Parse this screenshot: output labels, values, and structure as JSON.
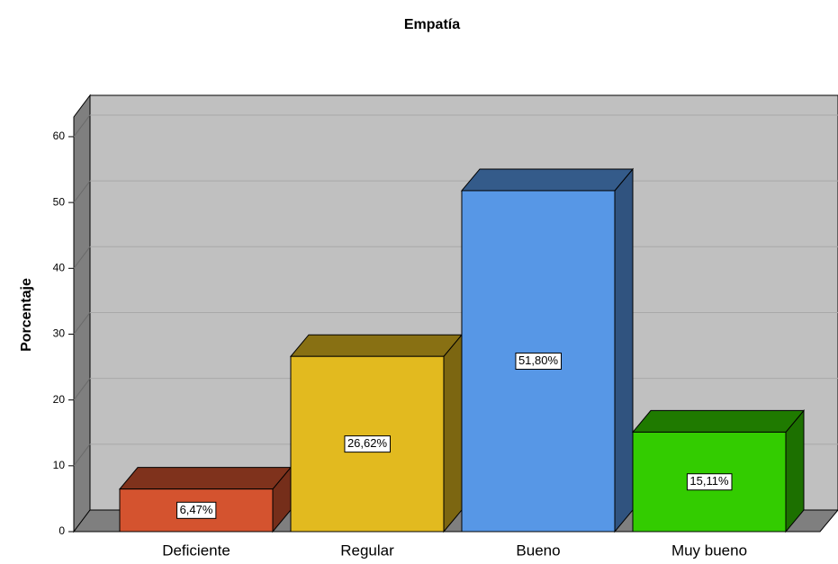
{
  "chart_data": {
    "type": "bar3d",
    "title": "Empatía",
    "y_label": "Porcentaje",
    "categories": [
      "Deficiente",
      "Regular",
      "Bueno",
      "Muy bueno"
    ],
    "values": [
      6.47,
      26.62,
      51.8,
      15.11
    ],
    "value_labels": [
      "6,47%",
      "26,62%",
      "51,80%",
      "15,11%"
    ],
    "colors": [
      "#d4532f",
      "#e2ba1f",
      "#5797e6",
      "#33cc00"
    ],
    "ylim": [
      0,
      63
    ],
    "yticks": [
      0,
      10,
      20,
      30,
      40,
      50,
      60
    ],
    "grid": true
  }
}
